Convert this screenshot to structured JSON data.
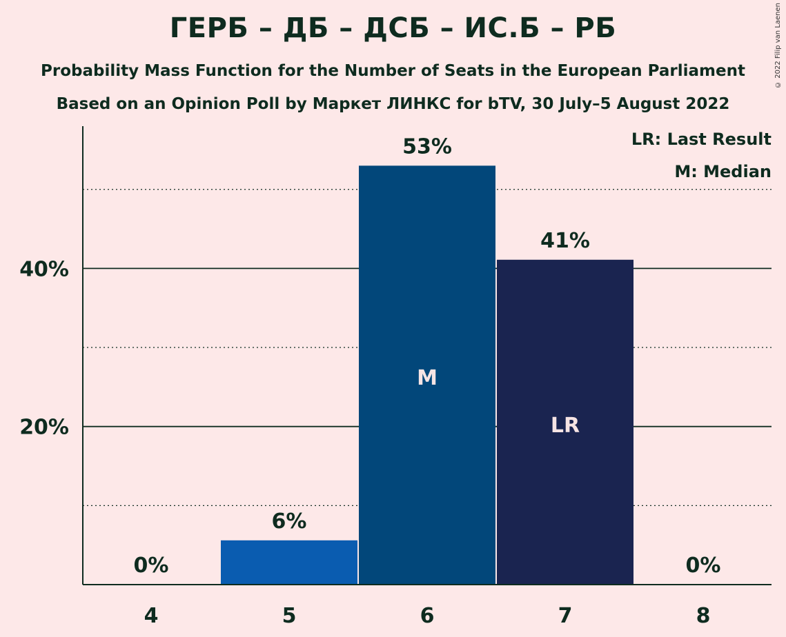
{
  "chart_data": {
    "type": "bar",
    "title": "ГЕРБ – ДБ – ДСБ – ИС.Б – РБ",
    "subtitle": "Probability Mass Function for the Number of Seats in the European Parliament",
    "subtitle2": "Based on an Opinion Poll by Маркет ЛИНКС for bTV, 30 July–5 August 2022",
    "copyright": "© 2022 Filip van Laenen",
    "categories": [
      "4",
      "5",
      "6",
      "7",
      "8"
    ],
    "values": [
      0,
      5.6,
      53,
      41.1,
      0
    ],
    "value_labels": [
      "0%",
      "6%",
      "53%",
      "41%",
      "0%"
    ],
    "bar_colors": [
      "#0a5cb0",
      "#0a5cb0",
      "#02477a",
      "#1a2450",
      "#0a5cb0"
    ],
    "bar_markers": [
      "",
      "",
      "M",
      "LR",
      ""
    ],
    "ylim": [
      0,
      58
    ],
    "y_ticks": [
      {
        "value": 20,
        "label": "20%"
      },
      {
        "value": 40,
        "label": "40%"
      }
    ],
    "minor_gridlines": [
      10,
      30,
      50
    ],
    "legend": {
      "position": "top-right",
      "items": [
        "LR: Last Result",
        "M: Median"
      ]
    }
  }
}
